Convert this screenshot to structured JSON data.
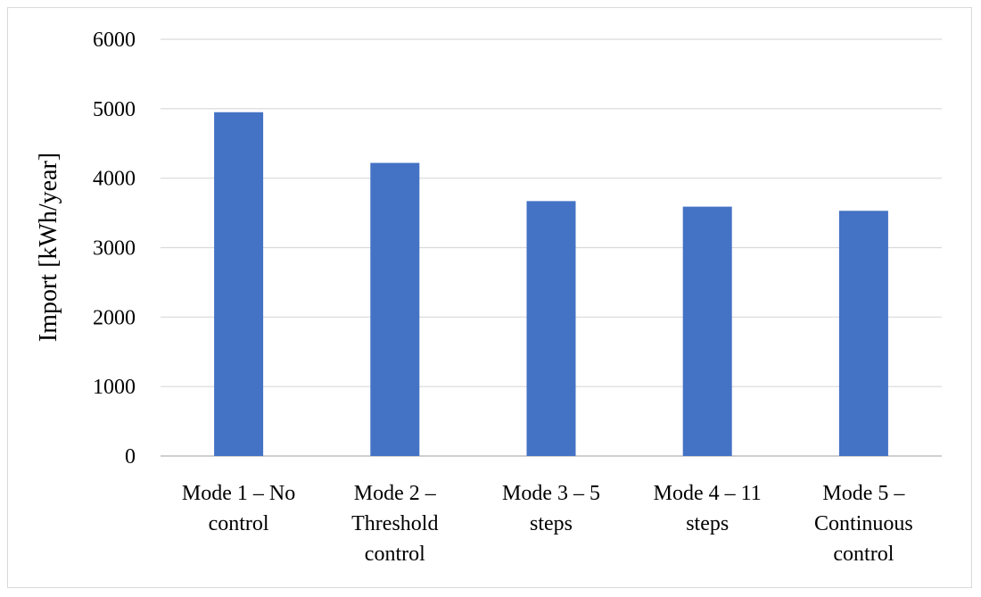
{
  "chart_data": {
    "type": "bar",
    "title": "",
    "xlabel": "",
    "ylabel": "Import [kWh/year]",
    "ylim": [
      0,
      6000
    ],
    "yticks": [
      0,
      1000,
      2000,
      3000,
      4000,
      5000,
      6000
    ],
    "grid": true,
    "legend": "none",
    "categories": [
      [
        "Mode 1 – No",
        "control"
      ],
      [
        "Mode 2 –",
        "Threshold",
        "control"
      ],
      [
        "Mode 3 – 5",
        "steps"
      ],
      [
        "Mode 4 – 11",
        "steps"
      ],
      [
        "Mode 5 –",
        "Continuous",
        "control"
      ]
    ],
    "values": [
      4950,
      4220,
      3670,
      3590,
      3530
    ],
    "colors": {
      "bar": "#4472c4",
      "grid": "#d9d9d9",
      "axis": "#bfbfbf"
    }
  }
}
